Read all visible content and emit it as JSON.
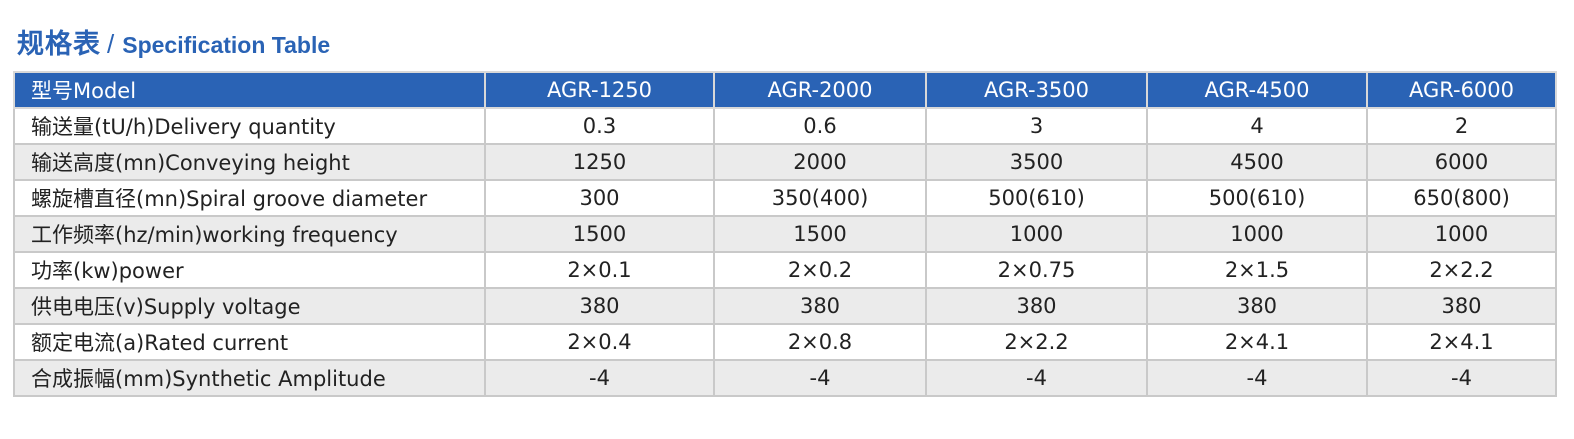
{
  "header": {
    "title_cn": "规格表",
    "separator": "/",
    "title_en": "Specification Table"
  },
  "table": {
    "columns": [
      "型号Model",
      "AGR-1250",
      "AGR-2000",
      "AGR-3500",
      "AGR-4500",
      "AGR-6000"
    ],
    "rows": [
      [
        "输送量(tU/h)Delivery quantity",
        "0.3",
        "0.6",
        "3",
        "4",
        "2"
      ],
      [
        "输送高度(mn)Conveying height",
        "1250",
        "2000",
        "3500",
        "4500",
        "6000"
      ],
      [
        "螺旋槽直径(mn)Spiral groove diameter",
        "300",
        "350(400)",
        "500(610)",
        "500(610)",
        "650(800)"
      ],
      [
        "工作频率(hz/min)working frequency",
        "1500",
        "1500",
        "1000",
        "1000",
        "1000"
      ],
      [
        "功率(kw)power",
        "2×0.1",
        "2×0.2",
        "2×0.75",
        "2×1.5",
        "2×2.2"
      ],
      [
        "供电电压(v)Supply voltage",
        "380",
        "380",
        "380",
        "380",
        "380"
      ],
      [
        "额定电流(a)Rated current",
        "2×0.4",
        "2×0.8",
        "2×2.2",
        "2×4.1",
        "2×4.1"
      ],
      [
        "合成振幅(mm)Synthetic Amplitude",
        "-4",
        "-4",
        "-4",
        "-4",
        "-4"
      ]
    ]
  },
  "colors": {
    "accent": "#2a63b5",
    "header_text": "#ffffff",
    "row_alt": "#ebebeb",
    "border": "#c9c9c9"
  }
}
